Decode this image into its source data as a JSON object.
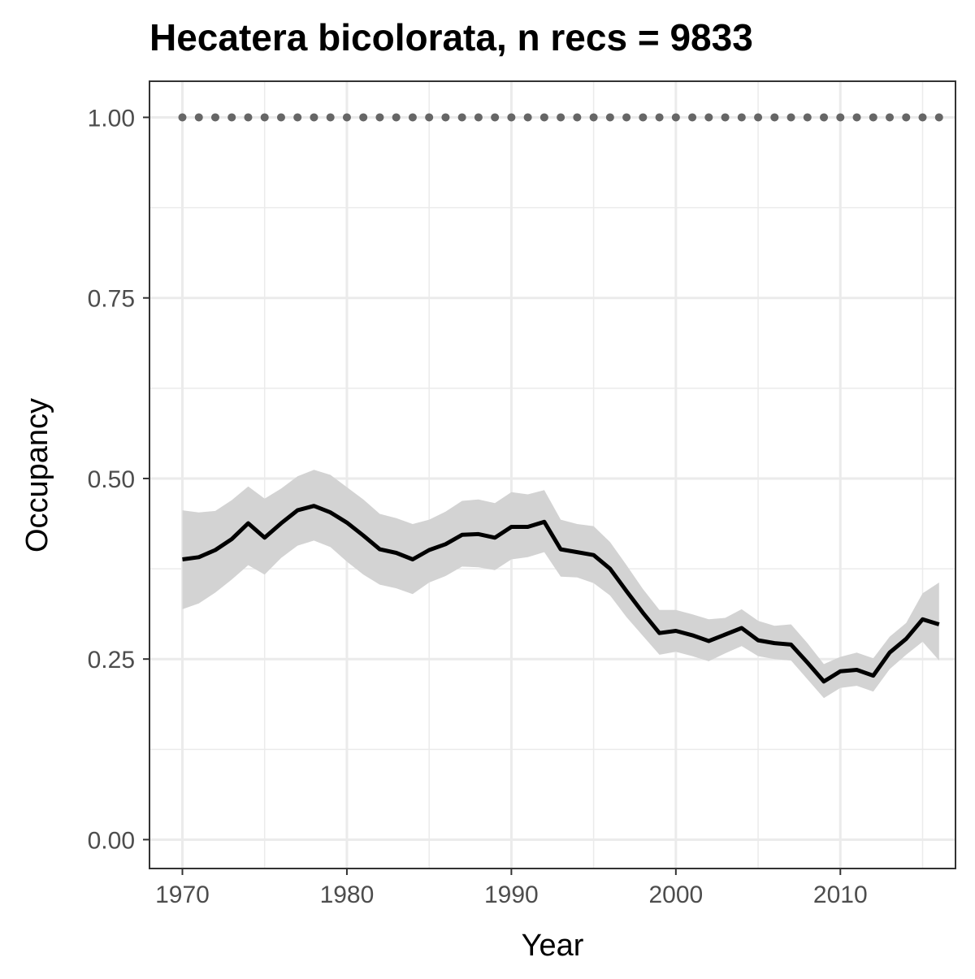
{
  "chart_data": {
    "type": "line",
    "title": "Hecatera bicolorata, n recs = 9833",
    "xlabel": "Year",
    "ylabel": "Occupancy",
    "xlim": [
      1968,
      2017
    ],
    "ylim": [
      -0.04,
      1.05
    ],
    "x_ticks": [
      1970,
      1980,
      1990,
      2000,
      2010
    ],
    "x_tick_labels": [
      "1970",
      "1980",
      "1990",
      "2000",
      "2010"
    ],
    "y_ticks": [
      0,
      0.25,
      0.5,
      0.75,
      1.0
    ],
    "y_tick_labels": [
      "0.00",
      "0.25",
      "0.50",
      "0.75",
      "1.00"
    ],
    "y_minor_ticks": [
      0.125,
      0.375,
      0.625,
      0.875
    ],
    "x_minor_ticks": [
      1975,
      1985,
      1995,
      2005,
      2015
    ],
    "grid": true,
    "legend": "none",
    "colors": {
      "line": "#000000",
      "ribbon": "#d3d3d3",
      "reference_points": "#666666",
      "grid": "#ebebeb",
      "panel_border": "#333333"
    },
    "x": [
      1970,
      1971,
      1972,
      1973,
      1974,
      1975,
      1976,
      1977,
      1978,
      1979,
      1980,
      1981,
      1982,
      1983,
      1984,
      1985,
      1986,
      1987,
      1988,
      1989,
      1990,
      1991,
      1992,
      1993,
      1994,
      1995,
      1996,
      1997,
      1998,
      1999,
      2000,
      2001,
      2002,
      2003,
      2004,
      2005,
      2006,
      2007,
      2008,
      2009,
      2010,
      2011,
      2012,
      2013,
      2014,
      2015,
      2016
    ],
    "series": [
      {
        "type": "line",
        "values": [
          0.388,
          0.391,
          0.401,
          0.416,
          0.438,
          0.418,
          0.438,
          0.456,
          0.462,
          0.453,
          0.439,
          0.421,
          0.402,
          0.397,
          0.388,
          0.401,
          0.409,
          0.422,
          0.423,
          0.418,
          0.433,
          0.433,
          0.44,
          0.402,
          0.398,
          0.394,
          0.375,
          0.344,
          0.314,
          0.286,
          0.289,
          0.283,
          0.275,
          0.284,
          0.293,
          0.276,
          0.272,
          0.27,
          0.245,
          0.219,
          0.233,
          0.235,
          0.227,
          0.259,
          0.278,
          0.305,
          0.298
        ]
      },
      {
        "type": "ribbon",
        "upper": [
          0.456,
          0.453,
          0.455,
          0.47,
          0.489,
          0.472,
          0.486,
          0.503,
          0.512,
          0.505,
          0.488,
          0.471,
          0.451,
          0.445,
          0.437,
          0.443,
          0.454,
          0.469,
          0.471,
          0.466,
          0.481,
          0.478,
          0.484,
          0.443,
          0.437,
          0.434,
          0.412,
          0.38,
          0.347,
          0.318,
          0.318,
          0.312,
          0.305,
          0.307,
          0.319,
          0.303,
          0.296,
          0.298,
          0.272,
          0.243,
          0.253,
          0.259,
          0.251,
          0.281,
          0.3,
          0.341,
          0.356
        ],
        "lower": [
          0.319,
          0.327,
          0.342,
          0.36,
          0.38,
          0.367,
          0.39,
          0.407,
          0.414,
          0.405,
          0.385,
          0.367,
          0.353,
          0.348,
          0.34,
          0.356,
          0.365,
          0.378,
          0.377,
          0.373,
          0.388,
          0.391,
          0.398,
          0.364,
          0.363,
          0.355,
          0.338,
          0.308,
          0.282,
          0.256,
          0.26,
          0.254,
          0.247,
          0.258,
          0.268,
          0.254,
          0.25,
          0.248,
          0.222,
          0.196,
          0.21,
          0.213,
          0.205,
          0.236,
          0.256,
          0.274,
          0.248
        ]
      },
      {
        "type": "points",
        "values": [
          1,
          1,
          1,
          1,
          1,
          1,
          1,
          1,
          1,
          1,
          1,
          1,
          1,
          1,
          1,
          1,
          1,
          1,
          1,
          1,
          1,
          1,
          1,
          1,
          1,
          1,
          1,
          1,
          1,
          1,
          1,
          1,
          1,
          1,
          1,
          1,
          1,
          1,
          1,
          1,
          1,
          1,
          1,
          1,
          1,
          1,
          1
        ]
      }
    ]
  }
}
